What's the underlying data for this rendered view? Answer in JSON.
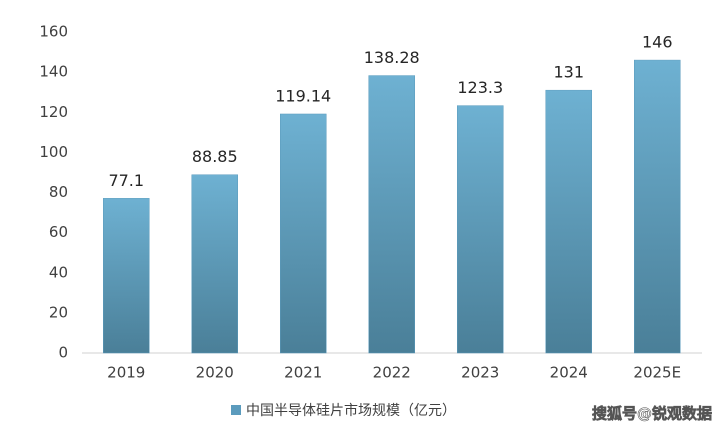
{
  "chart_data": {
    "type": "bar",
    "categories": [
      "2019",
      "2020",
      "2021",
      "2022",
      "2023",
      "2024",
      "2025E"
    ],
    "series": [
      {
        "name": "中国半导体硅片市场规模（亿元）",
        "color": "#5b9bbd",
        "values": [
          77.1,
          88.85,
          119.14,
          138.28,
          123.3,
          131,
          146
        ]
      }
    ],
    "ylim": [
      0,
      160
    ],
    "yticks": [
      0,
      20,
      40,
      60,
      80,
      100,
      120,
      140,
      160
    ],
    "grid": false,
    "legend": "bottom",
    "watermark": "搜狐号@锐观数据"
  }
}
